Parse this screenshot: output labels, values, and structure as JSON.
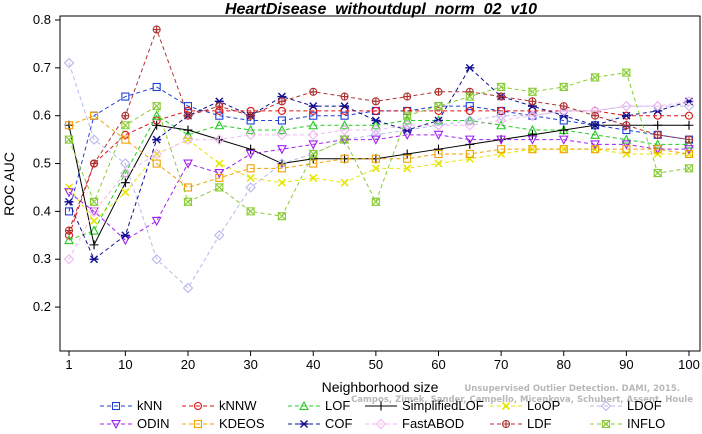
{
  "chart_data": {
    "type": "line",
    "title": "HeartDisease_withoutdupl_norm_02_v10",
    "xlabel": "Neighborhood size",
    "ylabel": "ROC AUC",
    "xlim": [
      1,
      100
    ],
    "ylim": [
      0.15,
      0.8
    ],
    "x_ticks": [
      1,
      10,
      20,
      30,
      40,
      50,
      60,
      70,
      80,
      90,
      100
    ],
    "y_ticks": [
      0.2,
      0.3,
      0.4,
      0.5,
      0.6,
      0.7,
      0.8
    ],
    "grid": false,
    "legend_position": "bottom",
    "x": [
      1,
      5,
      10,
      15,
      20,
      25,
      30,
      35,
      40,
      45,
      50,
      55,
      60,
      65,
      70,
      75,
      80,
      85,
      90,
      95,
      100
    ],
    "series": [
      {
        "name": "kNN",
        "color": "#1f3fd6",
        "dash": "4,3",
        "marker": "square",
        "values": [
          0.4,
          0.6,
          0.64,
          0.66,
          0.62,
          0.6,
          0.59,
          0.59,
          0.6,
          0.6,
          0.61,
          0.61,
          0.62,
          0.62,
          0.61,
          0.6,
          0.59,
          0.58,
          0.57,
          0.56,
          0.55
        ]
      },
      {
        "name": "kNNW",
        "color": "#e01010",
        "dash": "4,3",
        "marker": "circle",
        "values": [
          0.35,
          0.5,
          0.56,
          0.59,
          0.61,
          0.61,
          0.61,
          0.61,
          0.61,
          0.61,
          0.61,
          0.61,
          0.61,
          0.61,
          0.61,
          0.61,
          0.61,
          0.61,
          0.6,
          0.6,
          0.6
        ]
      },
      {
        "name": "LOF",
        "color": "#22cc22",
        "dash": "4,3",
        "marker": "triangle",
        "values": [
          0.34,
          0.36,
          0.48,
          0.6,
          0.56,
          0.58,
          0.57,
          0.57,
          0.58,
          0.58,
          0.58,
          0.59,
          0.59,
          0.59,
          0.58,
          0.57,
          0.57,
          0.56,
          0.55,
          0.54,
          0.54
        ]
      },
      {
        "name": "SimplifiedLOF",
        "color": "#000000",
        "dash": "",
        "marker": "plus",
        "values": [
          0.58,
          0.33,
          0.46,
          0.58,
          0.57,
          0.55,
          0.53,
          0.5,
          0.51,
          0.51,
          0.51,
          0.52,
          0.53,
          0.54,
          0.55,
          0.56,
          0.57,
          0.58,
          0.58,
          0.58,
          0.58
        ]
      },
      {
        "name": "LoOP",
        "color": "#e6e600",
        "dash": "4,3",
        "marker": "cross",
        "values": [
          0.45,
          0.38,
          0.44,
          0.52,
          0.55,
          0.5,
          0.47,
          0.46,
          0.47,
          0.46,
          0.49,
          0.49,
          0.5,
          0.51,
          0.52,
          0.53,
          0.53,
          0.53,
          0.52,
          0.52,
          0.52
        ]
      },
      {
        "name": "LDOF",
        "color": "#b8b8f0",
        "dash": "4,3",
        "marker": "diamond",
        "values": [
          0.71,
          0.55,
          0.5,
          0.3,
          0.24,
          0.35,
          0.45,
          0.5,
          0.52,
          0.55,
          0.56,
          0.57,
          0.58,
          0.59,
          0.6,
          0.6,
          0.61,
          0.61,
          0.62,
          0.62,
          0.62
        ]
      },
      {
        "name": "ODIN",
        "color": "#a020f0",
        "dash": "4,3",
        "marker": "invtriangle",
        "values": [
          0.44,
          0.4,
          0.34,
          0.38,
          0.5,
          0.48,
          0.52,
          0.53,
          0.54,
          0.55,
          0.55,
          0.56,
          0.56,
          0.55,
          0.55,
          0.55,
          0.55,
          0.54,
          0.54,
          0.53,
          0.53
        ]
      },
      {
        "name": "KDEOS",
        "color": "#f0a000",
        "dash": "4,3",
        "marker": "square",
        "values": [
          0.58,
          0.6,
          0.55,
          0.5,
          0.45,
          0.47,
          0.49,
          0.49,
          0.5,
          0.51,
          0.51,
          0.51,
          0.52,
          0.52,
          0.53,
          0.53,
          0.53,
          0.53,
          0.53,
          0.53,
          0.52
        ]
      },
      {
        "name": "COF",
        "color": "#101090",
        "dash": "4,3",
        "marker": "asterisk",
        "values": [
          0.42,
          0.3,
          0.35,
          0.55,
          0.6,
          0.63,
          0.6,
          0.64,
          0.62,
          0.62,
          0.59,
          0.57,
          0.59,
          0.7,
          0.64,
          0.62,
          0.6,
          0.58,
          0.6,
          0.61,
          0.63
        ]
      },
      {
        "name": "FastABOD",
        "color": "#f0b8f0",
        "dash": "4,3",
        "marker": "diamond",
        "values": [
          0.3,
          0.4,
          0.48,
          0.52,
          0.55,
          0.55,
          0.56,
          0.56,
          0.56,
          0.57,
          0.57,
          0.58,
          0.58,
          0.58,
          0.59,
          0.6,
          0.61,
          0.61,
          0.62,
          0.62,
          0.63
        ]
      },
      {
        "name": "LDF",
        "color": "#b03030",
        "dash": "4,3",
        "marker": "circleplus",
        "values": [
          0.36,
          0.5,
          0.6,
          0.78,
          0.6,
          0.62,
          0.6,
          0.63,
          0.65,
          0.64,
          0.63,
          0.64,
          0.65,
          0.65,
          0.64,
          0.63,
          0.62,
          0.6,
          0.58,
          0.56,
          0.55
        ]
      },
      {
        "name": "INFLO",
        "color": "#88cc33",
        "dash": "4,3",
        "marker": "hourglass",
        "values": [
          0.55,
          0.42,
          0.58,
          0.62,
          0.42,
          0.45,
          0.4,
          0.39,
          0.52,
          0.55,
          0.42,
          0.6,
          0.62,
          0.64,
          0.66,
          0.65,
          0.66,
          0.68,
          0.69,
          0.48,
          0.49
        ]
      }
    ]
  },
  "watermark": {
    "line1": "Unsupervised Outlier Detection. DAMI, 2015.",
    "line2": "Campos, Zimek, Sander, Campello, Micenkova, Schubert, Assent, Houle"
  }
}
